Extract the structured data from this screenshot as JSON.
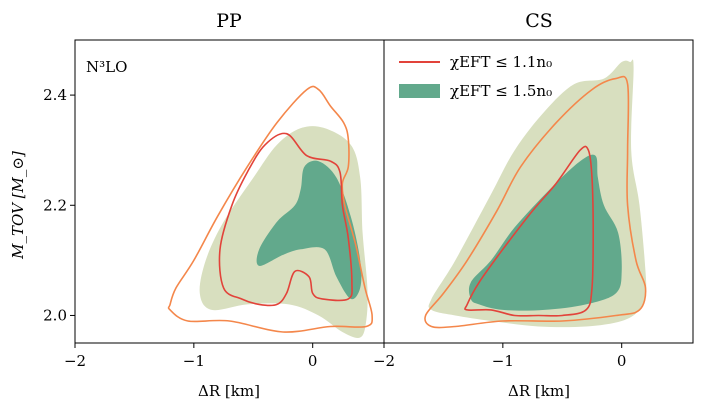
{
  "colors": {
    "outer_contour": "#f4874b",
    "inner_contour": "#e2433a",
    "fill_light": "#d8dfbf",
    "fill_dark": "#62a98c",
    "axes": "#000000"
  },
  "chart_data": [
    {
      "type": "contour",
      "panel": "left",
      "title": "PP",
      "annotation": "N³LO",
      "xlabel": "ΔR [km]",
      "ylabel": "M_TOV [M_⊙]",
      "xlim": [
        -2.0,
        0.6
      ],
      "ylim": [
        1.95,
        2.5
      ],
      "xticks": [
        -2,
        -1,
        0
      ],
      "xtick_labels": [
        "−2",
        "−1",
        "0"
      ],
      "yticks": [
        2.0,
        2.2,
        2.4
      ],
      "ytick_labels": [
        "2.0",
        "2.2",
        "2.4"
      ],
      "regions": {
        "light_fill": [
          [
            -0.95,
            2.04
          ],
          [
            -0.9,
            2.1
          ],
          [
            -0.75,
            2.17
          ],
          [
            -0.5,
            2.25
          ],
          [
            -0.3,
            2.31
          ],
          [
            -0.1,
            2.34
          ],
          [
            0.1,
            2.34
          ],
          [
            0.32,
            2.31
          ],
          [
            0.4,
            2.25
          ],
          [
            0.42,
            2.15
          ],
          [
            0.46,
            2.05
          ],
          [
            0.45,
            1.99
          ],
          [
            0.4,
            1.96
          ],
          [
            0.25,
            1.97
          ],
          [
            0.05,
            2.0
          ],
          [
            -0.2,
            2.02
          ],
          [
            -0.55,
            2.02
          ],
          [
            -0.85,
            2.01
          ]
        ],
        "dark_fill": [
          [
            -0.45,
            2.12
          ],
          [
            -0.3,
            2.17
          ],
          [
            -0.15,
            2.2
          ],
          [
            -0.1,
            2.23
          ],
          [
            -0.07,
            2.27
          ],
          [
            0.05,
            2.28
          ],
          [
            0.2,
            2.25
          ],
          [
            0.32,
            2.18
          ],
          [
            0.4,
            2.1
          ],
          [
            0.4,
            2.05
          ],
          [
            0.32,
            2.03
          ],
          [
            0.2,
            2.07
          ],
          [
            0.1,
            2.12
          ],
          [
            -0.1,
            2.12
          ],
          [
            -0.25,
            2.11
          ],
          [
            -0.45,
            2.09
          ]
        ],
        "outer_line": [
          [
            -1.2,
            2.02
          ],
          [
            -1.15,
            2.05
          ],
          [
            -1.0,
            2.1
          ],
          [
            -0.8,
            2.18
          ],
          [
            -0.55,
            2.27
          ],
          [
            -0.3,
            2.35
          ],
          [
            -0.05,
            2.41
          ],
          [
            0.05,
            2.41
          ],
          [
            0.15,
            2.38
          ],
          [
            0.26,
            2.35
          ],
          [
            0.3,
            2.32
          ],
          [
            0.3,
            2.27
          ],
          [
            0.25,
            2.24
          ],
          [
            0.27,
            2.2
          ],
          [
            0.36,
            2.13
          ],
          [
            0.44,
            2.05
          ],
          [
            0.5,
            2.0
          ],
          [
            0.45,
            1.98
          ],
          [
            0.15,
            1.98
          ],
          [
            -0.25,
            1.97
          ],
          [
            -0.7,
            1.99
          ],
          [
            -1.05,
            1.99
          ],
          [
            -1.2,
            2.01
          ]
        ],
        "inner_line": [
          [
            -0.75,
            2.05
          ],
          [
            -0.78,
            2.12
          ],
          [
            -0.68,
            2.2
          ],
          [
            -0.55,
            2.26
          ],
          [
            -0.4,
            2.31
          ],
          [
            -0.22,
            2.33
          ],
          [
            -0.05,
            2.29
          ],
          [
            0.15,
            2.28
          ],
          [
            0.23,
            2.26
          ],
          [
            0.25,
            2.2
          ],
          [
            0.3,
            2.14
          ],
          [
            0.33,
            2.06
          ],
          [
            0.3,
            2.03
          ],
          [
            0.08,
            2.03
          ],
          [
            0.0,
            2.04
          ],
          [
            -0.03,
            2.07
          ],
          [
            -0.15,
            2.08
          ],
          [
            -0.22,
            2.04
          ],
          [
            -0.3,
            2.02
          ],
          [
            -0.45,
            2.02
          ],
          [
            -0.6,
            2.03
          ]
        ]
      }
    },
    {
      "type": "contour",
      "panel": "right",
      "title": "CS",
      "xlabel": "ΔR [km]",
      "xlim": [
        -2.0,
        0.6
      ],
      "ylim": [
        1.95,
        2.5
      ],
      "xticks": [
        -2,
        -1,
        0
      ],
      "xtick_labels": [
        "−2",
        "−1",
        "0"
      ],
      "legend": {
        "placement": "top-left",
        "entries": [
          {
            "label": "χEFT ≤ 1.1n₀",
            "style": "line"
          },
          {
            "label": "χEFT ≤ 1.5n₀",
            "style": "filled"
          }
        ]
      },
      "regions": {
        "light_fill": [
          [
            -1.6,
            2.01
          ],
          [
            -1.6,
            2.03
          ],
          [
            -1.4,
            2.1
          ],
          [
            -1.1,
            2.22
          ],
          [
            -0.9,
            2.3
          ],
          [
            -0.65,
            2.37
          ],
          [
            -0.4,
            2.42
          ],
          [
            -0.15,
            2.43
          ],
          [
            0.0,
            2.46
          ],
          [
            0.07,
            2.46
          ],
          [
            0.1,
            2.45
          ],
          [
            0.08,
            2.3
          ],
          [
            0.15,
            2.2
          ],
          [
            0.2,
            2.08
          ],
          [
            0.2,
            2.04
          ],
          [
            0.15,
            2.01
          ],
          [
            0.0,
            1.99
          ],
          [
            -0.3,
            1.98
          ],
          [
            -0.7,
            1.98
          ],
          [
            -1.1,
            1.99
          ],
          [
            -1.4,
            2.0
          ]
        ],
        "dark_fill": [
          [
            -1.27,
            2.03
          ],
          [
            -1.27,
            2.06
          ],
          [
            -1.1,
            2.1
          ],
          [
            -0.9,
            2.16
          ],
          [
            -0.6,
            2.23
          ],
          [
            -0.35,
            2.28
          ],
          [
            -0.22,
            2.29
          ],
          [
            -0.2,
            2.25
          ],
          [
            -0.15,
            2.2
          ],
          [
            -0.03,
            2.15
          ],
          [
            0.0,
            2.08
          ],
          [
            -0.05,
            2.04
          ],
          [
            -0.3,
            2.02
          ],
          [
            -0.65,
            2.01
          ],
          [
            -1.0,
            2.01
          ],
          [
            -1.2,
            2.02
          ]
        ],
        "outer_line": [
          [
            -1.65,
            2.0
          ],
          [
            -1.5,
            2.04
          ],
          [
            -1.3,
            2.1
          ],
          [
            -1.05,
            2.19
          ],
          [
            -0.85,
            2.27
          ],
          [
            -0.55,
            2.35
          ],
          [
            -0.25,
            2.41
          ],
          [
            -0.05,
            2.43
          ],
          [
            0.05,
            2.42
          ],
          [
            0.05,
            2.3
          ],
          [
            0.05,
            2.2
          ],
          [
            0.12,
            2.1
          ],
          [
            0.2,
            2.05
          ],
          [
            0.15,
            2.01
          ],
          [
            -0.05,
            2.0
          ],
          [
            -0.5,
            1.99
          ],
          [
            -1.0,
            1.99
          ],
          [
            -1.4,
            1.98
          ],
          [
            -1.6,
            1.98
          ]
        ],
        "inner_line": [
          [
            -1.3,
            2.02
          ],
          [
            -1.2,
            2.06
          ],
          [
            -1.0,
            2.12
          ],
          [
            -0.75,
            2.19
          ],
          [
            -0.55,
            2.24
          ],
          [
            -0.35,
            2.3
          ],
          [
            -0.28,
            2.3
          ],
          [
            -0.25,
            2.25
          ],
          [
            -0.24,
            2.15
          ],
          [
            -0.25,
            2.05
          ],
          [
            -0.3,
            2.01
          ],
          [
            -0.5,
            2.0
          ],
          [
            -0.7,
            2.0
          ],
          [
            -0.9,
            2.0
          ],
          [
            -1.1,
            2.01
          ],
          [
            -1.3,
            2.01
          ]
        ]
      }
    }
  ]
}
